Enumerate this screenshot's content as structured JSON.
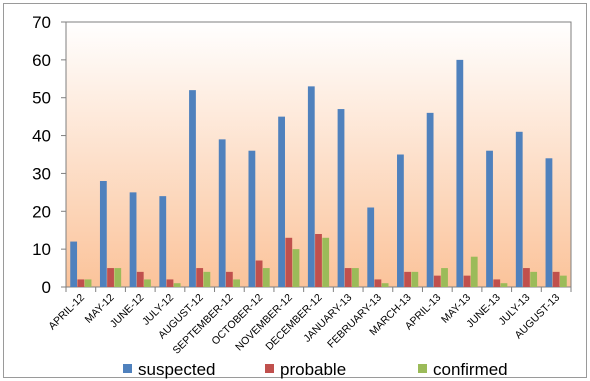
{
  "chart_data": {
    "type": "bar",
    "categories": [
      "APRIL-12",
      "MAY-12",
      "JUNE-12",
      "JULY-12",
      "AUGUST-12",
      "SEPTEMBER-12",
      "OCTOBER-12",
      "NOVEMBER-12",
      "DECEMBER-12",
      "JANUARY-13",
      "FEBRUARY-13",
      "MARCH-13",
      "APRIL-13",
      "MAY-13",
      "JUNE-13",
      "JULY-13",
      "AUGUST-13"
    ],
    "series": [
      {
        "name": "suspected",
        "color": "#4f81bd",
        "values": [
          12,
          28,
          25,
          24,
          52,
          39,
          36,
          45,
          53,
          47,
          21,
          35,
          46,
          60,
          36,
          41,
          34
        ]
      },
      {
        "name": "probable",
        "color": "#c0504d",
        "values": [
          2,
          5,
          4,
          2,
          5,
          4,
          7,
          13,
          14,
          5,
          2,
          4,
          3,
          3,
          2,
          5,
          4
        ]
      },
      {
        "name": "confirmed",
        "color": "#9bbb59",
        "values": [
          2,
          5,
          2,
          1,
          4,
          2,
          5,
          10,
          13,
          5,
          1,
          4,
          5,
          8,
          1,
          4,
          3
        ]
      }
    ],
    "ylim": [
      0,
      70
    ],
    "yticks": [
      "0",
      "10",
      "20",
      "30",
      "40",
      "50",
      "60",
      "70"
    ],
    "grid": false,
    "legend_position": "bottom",
    "plot_background": [
      "#ffffff",
      "#fbc39a"
    ]
  }
}
